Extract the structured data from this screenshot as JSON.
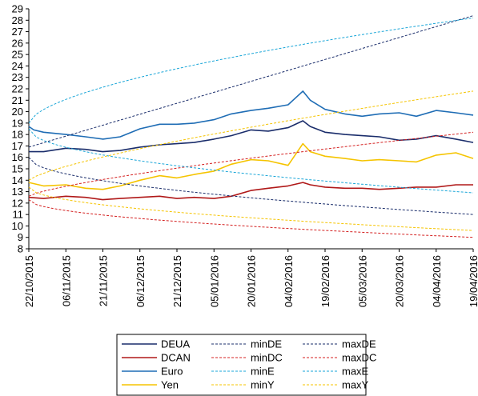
{
  "chart_data": {
    "type": "line",
    "title": "",
    "xlabel": "",
    "ylabel": "",
    "ylim": [
      8,
      29
    ],
    "yticks": [
      8,
      9,
      10,
      11,
      12,
      13,
      14,
      15,
      16,
      17,
      18,
      19,
      20,
      21,
      22,
      23,
      24,
      25,
      26,
      27,
      28,
      29
    ],
    "xlim": [
      "22/10/2015",
      "19/04/2016"
    ],
    "xtick_labels": [
      "22/10/2015",
      "06/11/2015",
      "21/11/2015",
      "06/12/2015",
      "21/12/2015",
      "05/01/2016",
      "20/01/2016",
      "04/02/2016",
      "19/02/2016",
      "05/03/2016",
      "20/03/2016",
      "04/04/2016",
      "19/04/2016"
    ],
    "grid": false,
    "legend_position": "bottom",
    "series": [
      {
        "name": "DEUA",
        "color": "#1a2d6b",
        "dash": "solid",
        "x": [
          "22/10/2015",
          "28/10/2015",
          "06/11/2015",
          "14/11/2015",
          "21/11/2015",
          "28/11/2015",
          "06/12/2015",
          "14/12/2015",
          "21/12/2015",
          "28/12/2015",
          "05/01/2016",
          "12/01/2016",
          "20/01/2016",
          "27/01/2016",
          "04/02/2016",
          "10/02/2016",
          "13/02/2016",
          "19/02/2016",
          "27/02/2016",
          "05/03/2016",
          "12/03/2016",
          "20/03/2016",
          "27/03/2016",
          "04/04/2016",
          "12/04/2016",
          "19/04/2016"
        ],
        "values": [
          16.5,
          16.5,
          16.8,
          16.7,
          16.5,
          16.6,
          16.9,
          17.1,
          17.2,
          17.3,
          17.6,
          17.9,
          18.4,
          18.3,
          18.6,
          19.2,
          18.7,
          18.2,
          18.0,
          17.9,
          17.8,
          17.5,
          17.6,
          17.9,
          17.6,
          17.3
        ]
      },
      {
        "name": "DCAN",
        "color": "#b01818",
        "dash": "solid",
        "x": [
          "22/10/2015",
          "28/10/2015",
          "06/11/2015",
          "14/11/2015",
          "21/11/2015",
          "28/11/2015",
          "06/12/2015",
          "14/12/2015",
          "21/12/2015",
          "28/12/2015",
          "05/01/2016",
          "12/01/2016",
          "20/01/2016",
          "27/01/2016",
          "04/02/2016",
          "10/02/2016",
          "13/02/2016",
          "19/02/2016",
          "27/02/2016",
          "05/03/2016",
          "12/03/2016",
          "20/03/2016",
          "27/03/2016",
          "04/04/2016",
          "12/04/2016",
          "19/04/2016"
        ],
        "values": [
          12.5,
          12.4,
          12.6,
          12.5,
          12.3,
          12.4,
          12.5,
          12.6,
          12.4,
          12.5,
          12.4,
          12.6,
          13.1,
          13.3,
          13.5,
          13.8,
          13.6,
          13.4,
          13.3,
          13.3,
          13.2,
          13.3,
          13.4,
          13.4,
          13.6,
          13.6
        ]
      },
      {
        "name": "Euro",
        "color": "#1f6db5",
        "dash": "solid",
        "x": [
          "22/10/2015",
          "24/10/2015",
          "28/10/2015",
          "06/11/2015",
          "14/11/2015",
          "21/11/2015",
          "28/11/2015",
          "06/12/2015",
          "14/12/2015",
          "21/12/2015",
          "28/12/2015",
          "05/01/2016",
          "12/01/2016",
          "20/01/2016",
          "27/01/2016",
          "04/02/2016",
          "10/02/2016",
          "13/02/2016",
          "19/02/2016",
          "27/02/2016",
          "05/03/2016",
          "12/03/2016",
          "20/03/2016",
          "27/03/2016",
          "04/04/2016",
          "12/04/2016",
          "19/04/2016"
        ],
        "values": [
          18.7,
          18.4,
          18.2,
          18.0,
          17.8,
          17.6,
          17.8,
          18.5,
          18.9,
          18.9,
          19.0,
          19.3,
          19.8,
          20.1,
          20.3,
          20.6,
          21.8,
          21.0,
          20.2,
          19.8,
          19.6,
          19.8,
          19.9,
          19.6,
          20.1,
          19.9,
          19.7
        ]
      },
      {
        "name": "Yen",
        "color": "#f5c400",
        "dash": "solid",
        "x": [
          "22/10/2015",
          "28/10/2015",
          "06/11/2015",
          "14/11/2015",
          "21/11/2015",
          "28/11/2015",
          "06/12/2015",
          "14/12/2015",
          "21/12/2015",
          "28/12/2015",
          "05/01/2016",
          "12/01/2016",
          "20/01/2016",
          "27/01/2016",
          "04/02/2016",
          "10/02/2016",
          "13/02/2016",
          "19/02/2016",
          "27/02/2016",
          "05/03/2016",
          "12/03/2016",
          "20/03/2016",
          "27/03/2016",
          "04/04/2016",
          "12/04/2016",
          "19/04/2016"
        ],
        "values": [
          13.8,
          13.5,
          13.6,
          13.3,
          13.2,
          13.5,
          14.0,
          14.4,
          14.2,
          14.5,
          14.8,
          15.4,
          15.8,
          15.7,
          15.3,
          17.2,
          16.5,
          16.1,
          15.9,
          15.7,
          15.8,
          15.7,
          15.6,
          16.2,
          16.4,
          15.9
        ]
      },
      {
        "name": "minDE",
        "color": "#1a2d6b",
        "dash": "dashed",
        "x": [
          "22/10/2015",
          "19/04/2016"
        ],
        "values": [
          16.0,
          11.0
        ],
        "curve": 0.5
      },
      {
        "name": "maxDE",
        "color": "#1a2d6b",
        "dash": "dashed",
        "x": [
          "22/10/2015",
          "19/04/2016"
        ],
        "values": [
          16.9,
          28.4
        ],
        "curve": 1.0
      },
      {
        "name": "minDC",
        "color": "#d42020",
        "dash": "dashed",
        "x": [
          "22/10/2015",
          "19/04/2016"
        ],
        "values": [
          12.3,
          9.0
        ],
        "curve": 0.5
      },
      {
        "name": "maxDC",
        "color": "#d42020",
        "dash": "dashed",
        "x": [
          "22/10/2015",
          "19/04/2016"
        ],
        "values": [
          12.6,
          18.2
        ],
        "curve": 0.75
      },
      {
        "name": "minE",
        "color": "#1aa6d8",
        "dash": "dashed",
        "x": [
          "22/10/2015",
          "19/04/2016"
        ],
        "values": [
          18.5,
          12.9
        ],
        "curve": 0.5
      },
      {
        "name": "maxE",
        "color": "#1aa6d8",
        "dash": "dashed",
        "x": [
          "22/10/2015",
          "19/04/2016"
        ],
        "values": [
          19.0,
          28.2
        ],
        "curve": 0.6
      },
      {
        "name": "minY",
        "color": "#f5c400",
        "dash": "dashed",
        "x": [
          "22/10/2015",
          "19/04/2016"
        ],
        "values": [
          13.4,
          9.6
        ],
        "curve": 0.5
      },
      {
        "name": "maxY",
        "color": "#f5c400",
        "dash": "dashed",
        "x": [
          "22/10/2015",
          "19/04/2016"
        ],
        "values": [
          14.0,
          21.8
        ],
        "curve": 0.75
      }
    ],
    "legend": {
      "columns": [
        [
          "DEUA",
          "DCAN",
          "Euro",
          "Yen"
        ],
        [
          "minDE",
          "minDC",
          "minE",
          "minY"
        ],
        [
          "maxDE",
          "maxDC",
          "maxE",
          "maxY"
        ]
      ]
    }
  }
}
